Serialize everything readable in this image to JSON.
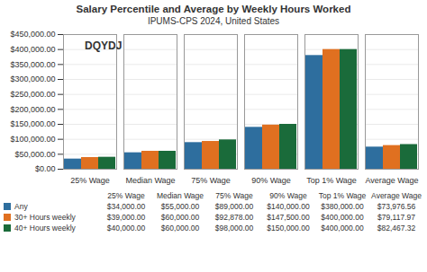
{
  "chart_data": {
    "type": "bar",
    "title": "Salary Percentile and Average by Weekly Hours Worked",
    "subtitle": "IPUMS-CPS 2024, United States",
    "categories": [
      "25% Wage",
      "Median Wage",
      "75% Wage",
      "90% Wage",
      "Top 1% Wage",
      "Average Wage"
    ],
    "series": [
      {
        "name": "Any",
        "color": "#2e6e9e",
        "values": [
          34000,
          55000,
          89000,
          140000,
          380000,
          73976.56
        ],
        "value_labels": [
          "$34,000.00",
          "$55,000.00",
          "$89,000.00",
          "$140,000.00",
          "$380,000.00",
          "$73,976.56"
        ]
      },
      {
        "name": "30+ Hours weekly",
        "color": "#e07020",
        "values": [
          39000,
          60000,
          92878,
          147500,
          400000,
          79117.97
        ],
        "value_labels": [
          "$39,000.00",
          "$60,000.00",
          "$92,878.00",
          "$147,500.00",
          "$400,000.00",
          "$79,117.97"
        ]
      },
      {
        "name": "40+ Hours weekly",
        "color": "#1a6b3a",
        "values": [
          40000,
          60000,
          98000,
          150000,
          400000,
          82467.32
        ],
        "value_labels": [
          "$40,000.00",
          "$60,000.00",
          "$98,000.00",
          "$150,000.00",
          "$400,000.00",
          "$82,467.32"
        ]
      }
    ],
    "ylim": [
      0,
      450000
    ],
    "yticks": [
      {
        "value": 0,
        "label": "$0.00"
      },
      {
        "value": 50000,
        "label": "$50,000.00"
      },
      {
        "value": 100000,
        "label": "$100,000.00"
      },
      {
        "value": 150000,
        "label": "$150,000.00"
      },
      {
        "value": 200000,
        "label": "$200,000.00"
      },
      {
        "value": 250000,
        "label": "$250,000.00"
      },
      {
        "value": 300000,
        "label": "$300,000.00"
      },
      {
        "value": 350000,
        "label": "$350,000.00"
      },
      {
        "value": 400000,
        "label": "$400,000.00"
      },
      {
        "value": 450000,
        "label": "$450,000.00"
      }
    ],
    "grid": true,
    "legend": "bottom",
    "annotations": [
      "DQYDJ"
    ]
  }
}
